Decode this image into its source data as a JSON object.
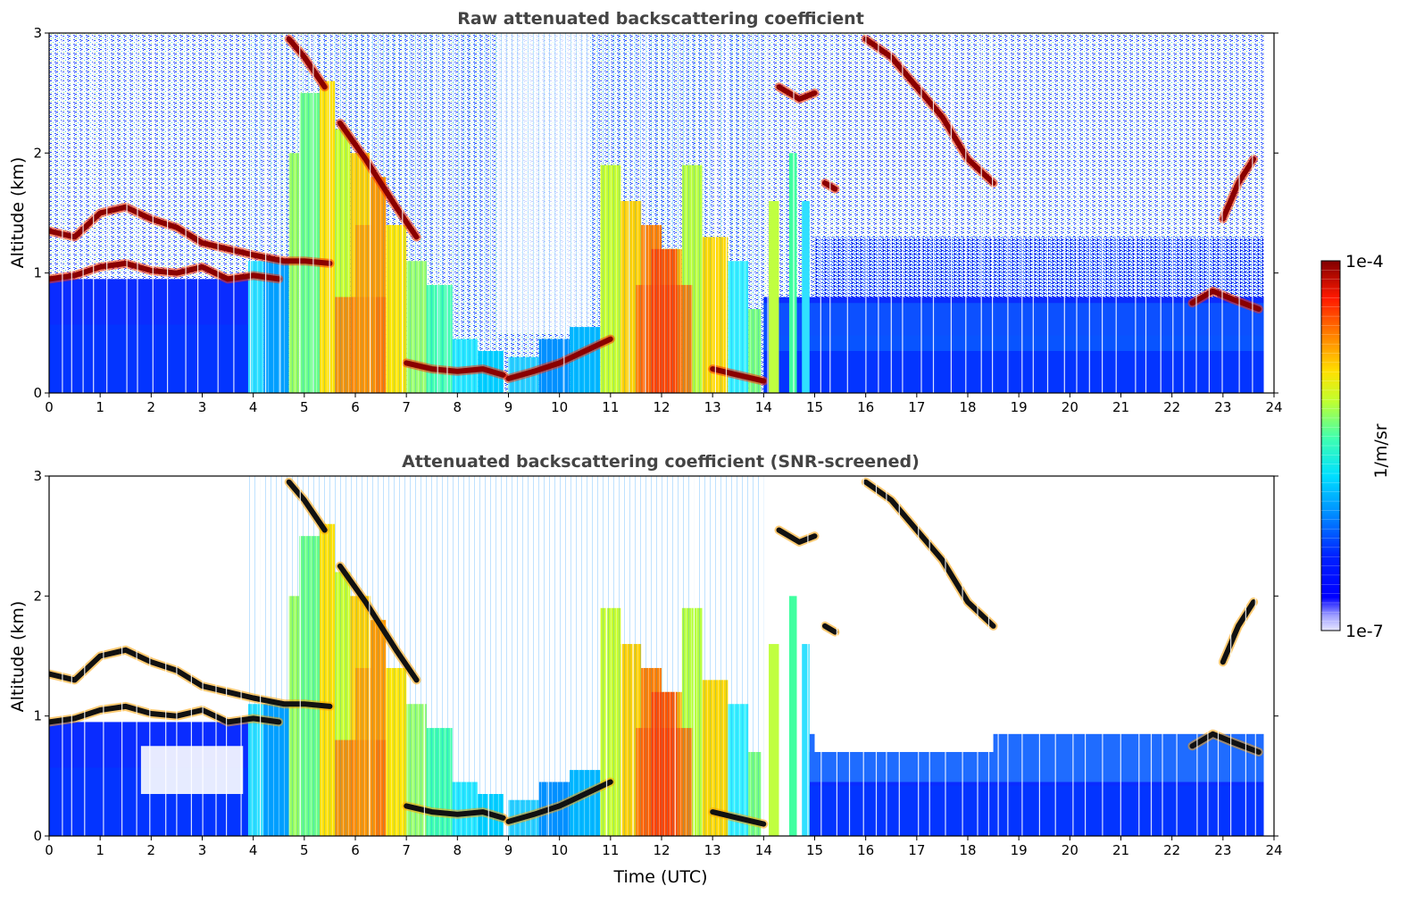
{
  "chart_data": [
    {
      "type": "heatmap",
      "title": "Raw attenuated backscattering coefficient",
      "xlabel": "",
      "ylabel": "Altitude (km)",
      "xlim": [
        0,
        24
      ],
      "ylim": [
        0,
        3
      ],
      "xticks": [
        "0",
        "1",
        "2",
        "3",
        "4",
        "5",
        "6",
        "7",
        "8",
        "9",
        "10",
        "11",
        "12",
        "13",
        "14",
        "15",
        "16",
        "17",
        "18",
        "19",
        "20",
        "21",
        "22",
        "23",
        "24"
      ],
      "yticks": [
        "0",
        "1",
        "2",
        "3"
      ],
      "features": {
        "cloud_layers": [
          {
            "t": [
              0,
              0.5,
              1,
              1.5,
              2,
              2.5,
              3,
              3.5,
              4,
              4.6,
              5,
              5.5
            ],
            "z": [
              1.35,
              1.3,
              1.5,
              1.55,
              1.45,
              1.38,
              1.25,
              1.2,
              1.15,
              1.1,
              1.1,
              1.08
            ]
          },
          {
            "t": [
              0,
              0.5,
              1,
              1.5,
              2,
              2.5,
              3,
              3.5,
              4,
              4.5
            ],
            "z": [
              0.95,
              0.98,
              1.05,
              1.08,
              1.02,
              1.0,
              1.05,
              0.95,
              0.98,
              0.95
            ]
          },
          {
            "t": [
              4.7,
              5.0,
              5.4
            ],
            "z": [
              2.95,
              2.8,
              2.55
            ]
          },
          {
            "t": [
              5.7,
              6.2,
              6.8,
              7.2
            ],
            "z": [
              2.25,
              1.95,
              1.55,
              1.3
            ]
          },
          {
            "t": [
              7.0,
              7.5,
              8.0,
              8.5,
              8.9
            ],
            "z": [
              0.25,
              0.2,
              0.18,
              0.2,
              0.15
            ]
          },
          {
            "t": [
              9.0,
              9.5,
              10.0,
              10.5,
              11.0
            ],
            "z": [
              0.12,
              0.18,
              0.25,
              0.35,
              0.45
            ]
          },
          {
            "t": [
              13.0,
              13.5,
              14.0
            ],
            "z": [
              0.2,
              0.15,
              0.1
            ]
          },
          {
            "t": [
              14.3,
              14.7,
              15.0
            ],
            "z": [
              2.55,
              2.45,
              2.5
            ]
          },
          {
            "t": [
              15.2,
              15.4
            ],
            "z": [
              1.75,
              1.7
            ]
          },
          {
            "t": [
              16.0,
              16.5,
              17.0,
              17.5,
              18.0,
              18.5
            ],
            "z": [
              2.95,
              2.8,
              2.55,
              2.3,
              1.95,
              1.75
            ]
          },
          {
            "t": [
              23.0,
              23.3,
              23.6
            ],
            "z": [
              1.45,
              1.75,
              1.95
            ]
          },
          {
            "t": [
              22.4,
              22.8,
              23.2,
              23.7
            ],
            "z": [
              0.75,
              0.85,
              0.78,
              0.7
            ]
          }
        ]
      }
    },
    {
      "type": "heatmap",
      "title": "Attenuated backscattering coefficient (SNR-screened)",
      "xlabel": "Time (UTC)",
      "ylabel": "Altitude (km)",
      "xlim": [
        0,
        24
      ],
      "ylim": [
        0,
        3
      ],
      "xticks": [
        "0",
        "1",
        "2",
        "3",
        "4",
        "5",
        "6",
        "7",
        "8",
        "9",
        "10",
        "11",
        "12",
        "13",
        "14",
        "15",
        "16",
        "17",
        "18",
        "19",
        "20",
        "21",
        "22",
        "23",
        "24"
      ],
      "yticks": [
        "0",
        "1",
        "2",
        "3"
      ]
    }
  ],
  "colorbar": {
    "label": "1/m/sr",
    "max_label": "1e-4",
    "min_label": "1e-7",
    "colormap": "jet",
    "colors": [
      "#00007f",
      "#0000ff",
      "#007fff",
      "#00ffff",
      "#7fff7f",
      "#ffff00",
      "#ff7f00",
      "#ff0000",
      "#7f0000"
    ]
  }
}
